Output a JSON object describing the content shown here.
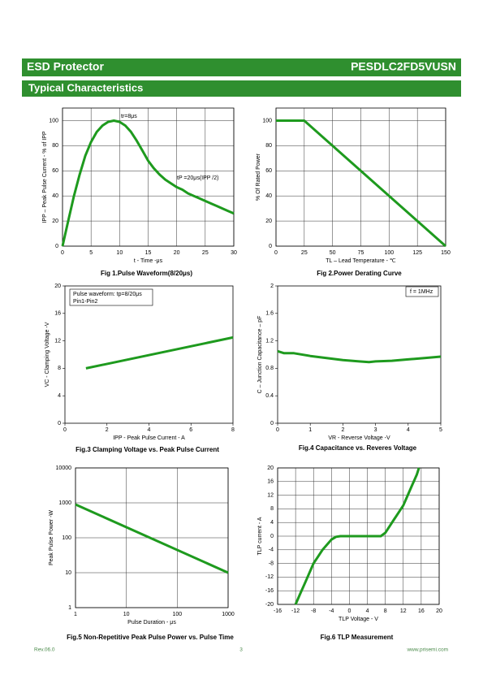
{
  "header": {
    "left": "ESD Protector",
    "right": "PESDLC2FD5VUSN"
  },
  "section": "Typical Characteristics",
  "chart_data": [
    {
      "type": "line",
      "title": "Fig 1.Pulse Waveform(8/20μs)",
      "x_label": "t - Time -μs",
      "y_label": "IPP – Peak Pulse Current - % of  IPP",
      "annotations": [
        "tr=8μs",
        "tP =20μs(IPP /2)"
      ],
      "color": "#1e9a1e",
      "grid": true,
      "x": [
        0,
        1,
        2,
        3,
        4,
        5,
        6,
        7,
        8,
        9,
        10,
        11,
        12,
        13,
        14,
        15,
        16,
        17,
        18,
        19,
        20,
        21,
        22,
        23,
        24,
        25,
        26,
        27,
        28,
        29,
        30
      ],
      "values": [
        0,
        20,
        40,
        57,
        72,
        83,
        91,
        96,
        99,
        100,
        99,
        96,
        91,
        84,
        76,
        68,
        62,
        57,
        53,
        50,
        47,
        45,
        42,
        40,
        38,
        36,
        34,
        32,
        30,
        28,
        26
      ],
      "xlim": [
        0,
        30
      ],
      "xticks": [
        0,
        5,
        10,
        15,
        20,
        25,
        30
      ],
      "ylim": [
        0,
        110
      ],
      "yticks": [
        0,
        20,
        40,
        60,
        80,
        100
      ]
    },
    {
      "type": "line",
      "title": "Fig 2.Power Derating Curve",
      "x_label": "TL – Lead Temperature - ℃",
      "y_label": "% Of Rated Power",
      "annotations": [],
      "color": "#1e9a1e",
      "grid": true,
      "x": [
        0,
        25,
        150
      ],
      "values": [
        100,
        100,
        0
      ],
      "xlim": [
        0,
        150
      ],
      "xticks": [
        0,
        25,
        50,
        75,
        100,
        125,
        150
      ],
      "ylim": [
        0,
        110
      ],
      "yticks": [
        0,
        20,
        40,
        60,
        80,
        100
      ]
    },
    {
      "type": "line",
      "title": "Fig.3 Clamping Voltage vs. Peak Pulse Current",
      "x_label": "IPP - Peak Pulse Current - A",
      "y_label": "VC - Clamping Voltage -V",
      "annotations": [
        "Pulse waveform: tp=8/20μs",
        "Pin1-Pin2"
      ],
      "color": "#1e9a1e",
      "grid": false,
      "x": [
        1,
        8
      ],
      "values": [
        8,
        12.5
      ],
      "xlim": [
        0,
        8
      ],
      "xticks": [
        0,
        2,
        4,
        6,
        8
      ],
      "ylim": [
        0,
        20
      ],
      "yticks": [
        0,
        4,
        8,
        12,
        16,
        20
      ]
    },
    {
      "type": "line",
      "title": "Fig.4 Capacitance vs. Reveres Voltage",
      "x_label": "VR - Reverse Voltage -V",
      "y_label": "C – Junction Capacitance – pF",
      "annotations": [
        "f = 1MHz"
      ],
      "color": "#1e9a1e",
      "grid": false,
      "x": [
        0,
        0.2,
        0.5,
        1,
        1.5,
        2,
        2.5,
        2.8,
        3,
        3.5,
        4,
        4.5,
        5
      ],
      "values": [
        1.05,
        1.02,
        1.02,
        0.98,
        0.95,
        0.92,
        0.9,
        0.89,
        0.9,
        0.91,
        0.93,
        0.95,
        0.97
      ],
      "xlim": [
        0,
        5
      ],
      "xticks": [
        0,
        1,
        2,
        3,
        4,
        5
      ],
      "ylim": [
        0,
        2
      ],
      "yticks": [
        0,
        0.4,
        0.8,
        1.2,
        1.6,
        2
      ]
    },
    {
      "type": "line",
      "title": "Fig.5 Non-Repetitive Peak Pulse Power vs. Pulse Time",
      "x_label": "Pulse Duration - μs",
      "y_label": "Peak Pulse Power -W",
      "annotations": [],
      "color": "#1e9a1e",
      "grid": true,
      "log_x": true,
      "log_y": true,
      "x": [
        1,
        1000
      ],
      "values": [
        900,
        10
      ],
      "xlim": [
        1,
        1000
      ],
      "xticks": [
        1,
        10,
        100,
        1000
      ],
      "ylim": [
        1,
        10000
      ],
      "yticks": [
        1,
        10,
        100,
        1000,
        10000
      ]
    },
    {
      "type": "line",
      "title": "Fig.6 TLP Measurement",
      "x_label": "TLP Voltage - V",
      "y_label": "TLP current - A",
      "annotations": [],
      "color": "#1e9a1e",
      "grid": true,
      "x": [
        -12,
        -11,
        -10,
        -9,
        -8,
        -7,
        -6,
        -5,
        -4,
        -3,
        -2,
        0,
        4,
        7,
        8,
        9,
        10,
        11,
        12,
        13,
        14,
        15,
        15.5
      ],
      "values": [
        -20,
        -17,
        -14,
        -11,
        -8,
        -6,
        -4,
        -2.5,
        -1,
        -0.2,
        0,
        0,
        0,
        0,
        1,
        3,
        5,
        7,
        9,
        12,
        15,
        18,
        20
      ],
      "xlim": [
        -16,
        20
      ],
      "xticks": [
        -16,
        -12,
        -8,
        -4,
        0,
        4,
        8,
        12,
        16,
        20
      ],
      "ylim": [
        -20,
        20
      ],
      "yticks": [
        -20,
        -16,
        -12,
        -8,
        -4,
        0,
        4,
        8,
        12,
        16,
        20
      ]
    }
  ],
  "footer": {
    "left": "Rev.06.0",
    "center": "3",
    "right": "www.prisemi.com"
  }
}
